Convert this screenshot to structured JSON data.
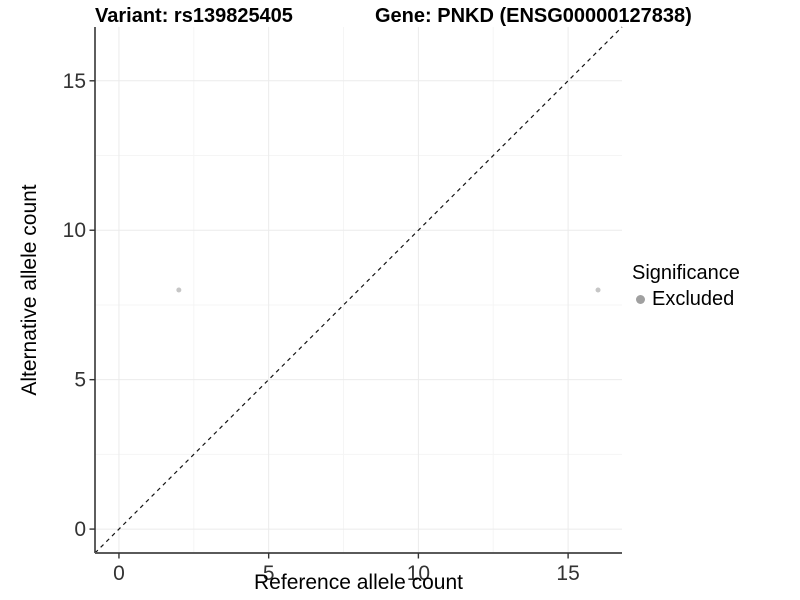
{
  "header": {
    "variant_title": "Variant: rs139825405",
    "gene_title": "Gene: PNKD (ENSG00000127838)"
  },
  "chart_data": {
    "type": "scatter",
    "xlabel": "Reference allele count",
    "ylabel": "Alternative allele count",
    "xlim": [
      -0.8,
      16.8
    ],
    "ylim": [
      -0.8,
      16.8
    ],
    "x_ticks": [
      0,
      5,
      10,
      15
    ],
    "y_ticks": [
      0,
      5,
      10,
      15
    ],
    "x_minor_ticks": [
      2.5,
      7.5,
      12.5
    ],
    "y_minor_ticks": [
      2.5,
      7.5,
      12.5
    ],
    "grid": {
      "on": true,
      "major_color": "#ebebeb",
      "minor_color": "#f5f5f5"
    },
    "identity_line": {
      "style": "dashed",
      "slope": 1,
      "intercept": 0,
      "color": "#141414"
    },
    "series": [
      {
        "name": "Excluded",
        "point_color": "#c6c6c6",
        "points": [
          {
            "x": 2,
            "y": 8
          },
          {
            "x": 16,
            "y": 8
          }
        ]
      }
    ],
    "legend": {
      "position": "right",
      "title": "Significance",
      "items": [
        {
          "label": "Excluded",
          "color": "#a0a0a0"
        }
      ]
    },
    "style": {
      "tick_label_color": "#333333",
      "x_axis_line_color": "#5a5a5a",
      "y_axis_line_color": "#1a1a1a",
      "tick_color": "#333333",
      "background": "#ffffff"
    }
  }
}
